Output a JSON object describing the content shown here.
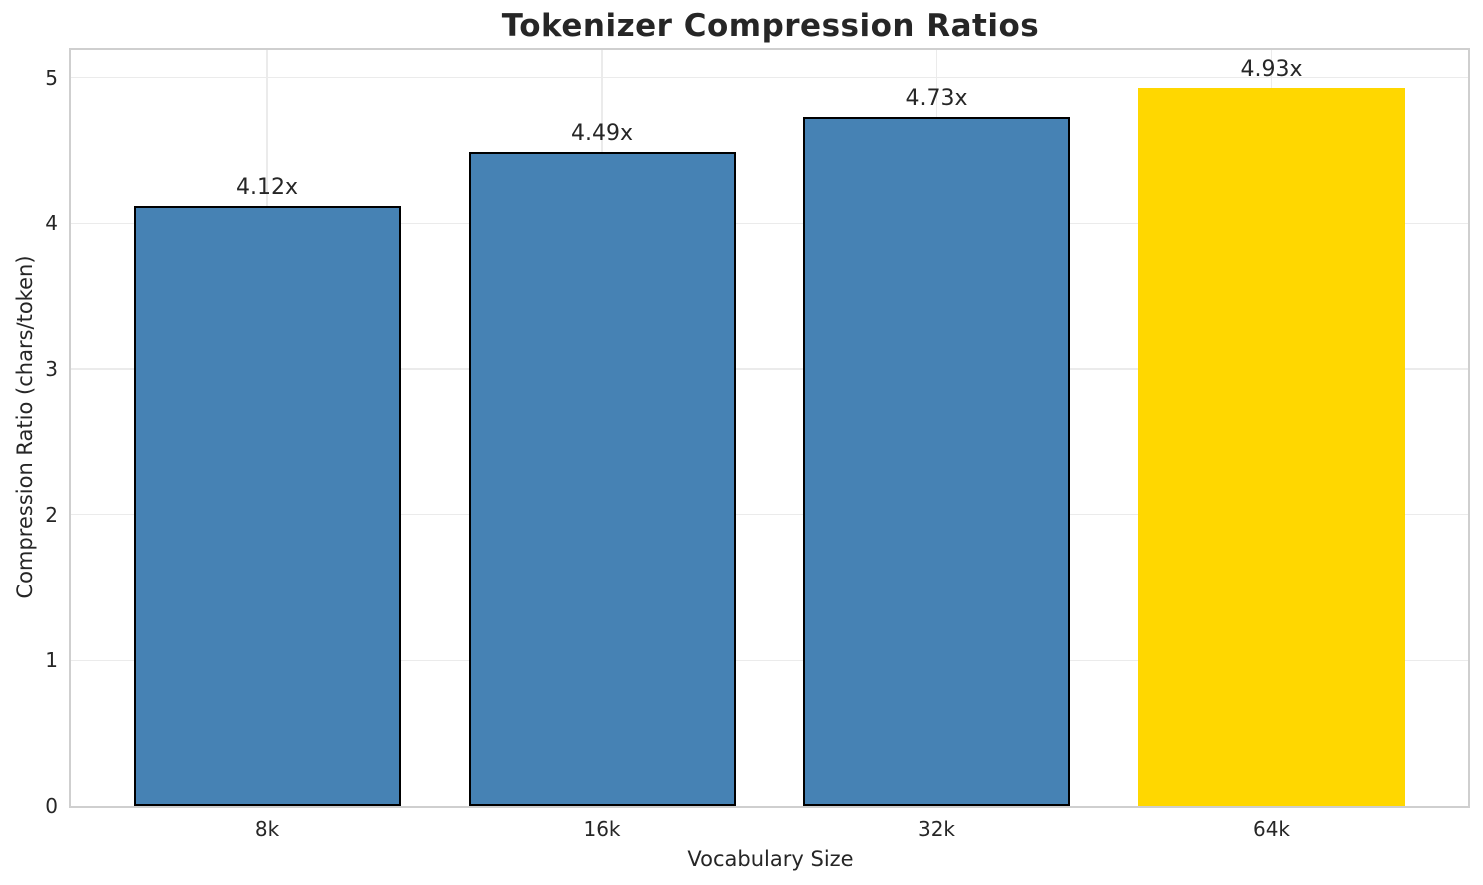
{
  "chart_data": {
    "type": "bar",
    "title": "Tokenizer Compression Ratios",
    "xlabel": "Vocabulary Size",
    "ylabel": "Compression Ratio (chars/token)",
    "categories": [
      "8k",
      "16k",
      "32k",
      "64k"
    ],
    "values": [
      4.12,
      4.49,
      4.73,
      4.93
    ],
    "bar_labels": [
      "4.12x",
      "4.49x",
      "4.73x",
      "4.93x"
    ],
    "bar_colors": [
      "#4682B4",
      "#4682B4",
      "#4682B4",
      "#FFD700"
    ],
    "bar_edge_colors": [
      "#000000",
      "#000000",
      "#000000",
      "none"
    ],
    "yticks": [
      "0",
      "1",
      "2",
      "3",
      "4",
      "5"
    ],
    "ylim": [
      0,
      5.19
    ],
    "grid": true,
    "legend_position": "none",
    "highlight_index": 3
  },
  "colors": {
    "accent_blue": "#4682B4",
    "accent_gold": "#FFD700",
    "spine": "#cfcfcf",
    "grid": "#ebebeb",
    "text": "#262626"
  }
}
